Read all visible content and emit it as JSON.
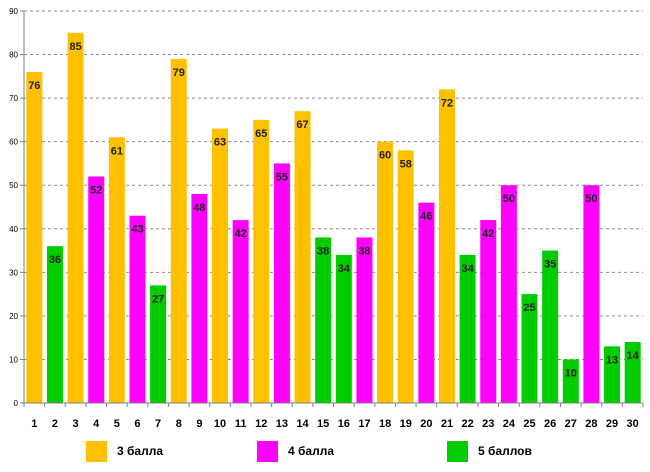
{
  "chart_data": {
    "type": "bar",
    "title": "",
    "xlabel": "",
    "ylabel": "",
    "ylim": [
      0,
      90
    ],
    "yticks": [
      0,
      10,
      20,
      30,
      40,
      50,
      60,
      70,
      80,
      90
    ],
    "grid": true,
    "legend_position": "bottom",
    "categories": [
      "1",
      "2",
      "3",
      "4",
      "5",
      "6",
      "7",
      "8",
      "9",
      "10",
      "11",
      "12",
      "13",
      "14",
      "15",
      "16",
      "17",
      "18",
      "19",
      "20",
      "21",
      "22",
      "23",
      "24",
      "25",
      "26",
      "27",
      "28",
      "29",
      "30"
    ],
    "values": [
      76,
      36,
      85,
      52,
      61,
      43,
      27,
      79,
      48,
      63,
      42,
      65,
      55,
      67,
      38,
      34,
      38,
      60,
      58,
      46,
      72,
      34,
      42,
      50,
      25,
      35,
      10,
      50,
      13,
      14
    ],
    "series_index": [
      0,
      2,
      0,
      1,
      0,
      1,
      2,
      0,
      1,
      0,
      1,
      0,
      1,
      0,
      2,
      2,
      1,
      0,
      0,
      1,
      0,
      2,
      1,
      1,
      2,
      2,
      2,
      1,
      2,
      2
    ],
    "series": [
      {
        "name": "3 балла",
        "color": "#FFC000"
      },
      {
        "name": "4 балла",
        "color": "#FF00FF"
      },
      {
        "name": "5 баллов",
        "color": "#00CC00"
      }
    ]
  }
}
